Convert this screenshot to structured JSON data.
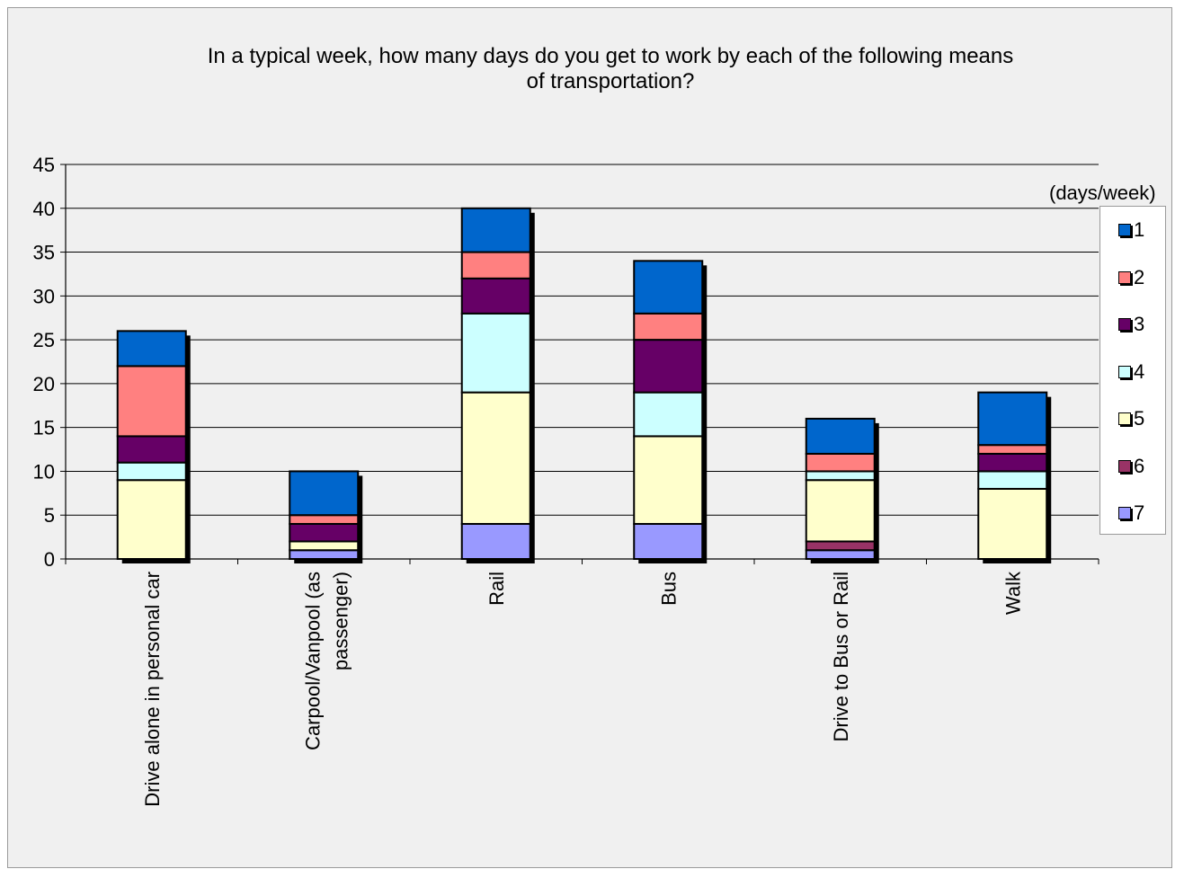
{
  "chart_data": {
    "type": "bar",
    "stacked": true,
    "title_lines": [
      "In a typical week, how many days do you get to work by each of the following means",
      "of transportation?"
    ],
    "legend_title": "(days/week)",
    "legend_position": "right",
    "ylim": [
      0,
      45
    ],
    "y_ticks": [
      "0",
      "5",
      "10",
      "15",
      "20",
      "25",
      "30",
      "35",
      "40",
      "45"
    ],
    "grid": true,
    "categories": [
      "Drive alone in personal car",
      "Carpool/Vanpool (as passenger)",
      "Rail",
      "Bus",
      "Drive to Bus or Rail",
      "Walk"
    ],
    "series": [
      {
        "name": "7",
        "color": "#9999ff",
        "values": [
          0,
          1,
          4,
          4,
          1,
          0
        ]
      },
      {
        "name": "6",
        "color": "#993366",
        "values": [
          0,
          0,
          0,
          0,
          1,
          0
        ]
      },
      {
        "name": "5",
        "color": "#ffffcc",
        "values": [
          9,
          1,
          15,
          10,
          7,
          8
        ]
      },
      {
        "name": "4",
        "color": "#ccffff",
        "values": [
          2,
          0,
          9,
          5,
          1,
          2
        ]
      },
      {
        "name": "3",
        "color": "#660066",
        "values": [
          3,
          2,
          4,
          6,
          0,
          2
        ]
      },
      {
        "name": "2",
        "color": "#ff8080",
        "values": [
          8,
          1,
          3,
          3,
          2,
          1
        ]
      },
      {
        "name": "1",
        "color": "#0066cc",
        "values": [
          4,
          5,
          5,
          6,
          4,
          6
        ]
      }
    ]
  }
}
